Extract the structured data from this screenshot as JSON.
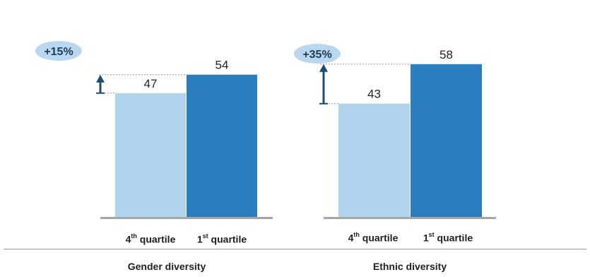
{
  "chart_data": [
    {
      "type": "bar",
      "title": "Gender diversity",
      "categories": [
        {
          "ordinal": "4",
          "suffix": "th",
          "rest": " quartile"
        },
        {
          "ordinal": "1",
          "suffix": "st",
          "rest": " quartile"
        }
      ],
      "values": [
        47,
        54
      ],
      "value_labels": [
        "47",
        "54"
      ],
      "difference_label": "+15%",
      "ylim": [
        0,
        80
      ],
      "grid": false
    },
    {
      "type": "bar",
      "title": "Ethnic diversity",
      "categories": [
        {
          "ordinal": "4",
          "suffix": "th",
          "rest": " quartile"
        },
        {
          "ordinal": "1",
          "suffix": "st",
          "rest": " quartile"
        }
      ],
      "values": [
        43,
        58
      ],
      "value_labels": [
        "43",
        "58"
      ],
      "difference_label": "+35%",
      "ylim": [
        0,
        80
      ],
      "grid": false
    }
  ],
  "colors": {
    "fourth_quartile": "#b0d4ee",
    "first_quartile": "#2b7fc0",
    "baseline": "#a6a6a6",
    "badge": "#b9d7ee",
    "arrow": "#1e4e6e",
    "guide": "#9a9a9a"
  },
  "icons": [
    "arrow-up-icon"
  ]
}
